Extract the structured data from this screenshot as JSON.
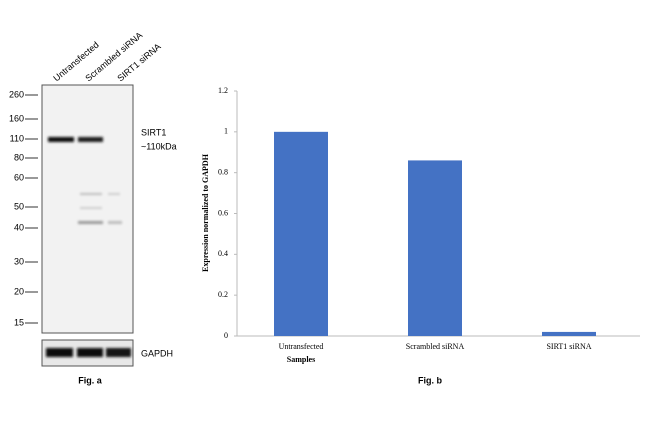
{
  "blot": {
    "lanes": [
      "Untransfected",
      "Scrambled siRNA",
      "SIRT1 siRNA"
    ],
    "markers": [
      260,
      160,
      110,
      80,
      60,
      50,
      40,
      30,
      20,
      15
    ],
    "target": "SIRT1",
    "target_size": "~110kDa",
    "loading_control": "GAPDH",
    "caption": "Fig. a"
  },
  "chart_data": {
    "type": "bar",
    "caption": "Fig. b",
    "x_label": "Samples",
    "y_label": "Expression normalized to GAPDH",
    "categories": [
      "Untransfected",
      "Scrambled siRNA",
      "SIRT1 siRNA"
    ],
    "values": [
      1,
      0.86,
      0.02
    ],
    "color": "#4472c4",
    "ylim": [
      0,
      1.2
    ],
    "yticks": [
      0,
      0.2,
      0.4,
      0.6,
      0.8,
      1,
      1.2
    ],
    "grid": false
  }
}
